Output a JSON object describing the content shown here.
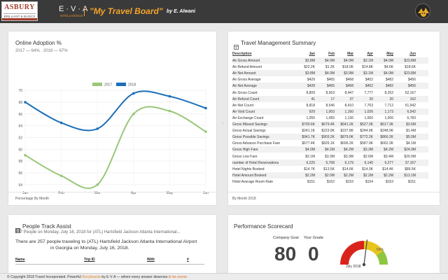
{
  "header": {
    "logo_main": "ASBURY",
    "logo_tag": "BRILLIANT & BASICS",
    "eva_logo": "E·V·A",
    "eva_sub": "INTELLIGENCE",
    "app_title": "\"My Travel Board\"",
    "app_byline": "by E. Alwani",
    "avatar_icon": "user-avatar-icon"
  },
  "adoption_card": {
    "title": "Online Adoption %",
    "subtitle": "2017 — 64% · 2018 — 67%",
    "footer": "Percentage By Month",
    "chart_data": {
      "type": "line",
      "categories": [
        "Jan",
        "Feb",
        "Mar",
        "Apr",
        "May",
        "Jun"
      ],
      "series": [
        {
          "name": "2017",
          "color": "#99c77a",
          "values": [
            59.0,
            55.5,
            54.0,
            66.0,
            66.5,
            63.0
          ]
        },
        {
          "name": "2018",
          "color": "#1c6fb8",
          "values": [
            68.0,
            64.5,
            63.5,
            69.5,
            69.0,
            67.0
          ]
        }
      ],
      "yticks": [
        54,
        56,
        58,
        60,
        62,
        64,
        66,
        68,
        70
      ],
      "ylim": [
        53.5,
        70.5
      ],
      "grid": true,
      "legend": "top"
    }
  },
  "travel_card": {
    "title": "Travel Management Summary",
    "title_icon": "table-icon",
    "footer": "By Month 2018",
    "columns": [
      "Description",
      "Jan",
      "Feb",
      "Mar",
      "Apr",
      "May",
      "Jun"
    ],
    "rows": [
      [
        "Air Gross Amount",
        "$3.8M",
        "$4.0M",
        "$4.0M",
        "$3.1M",
        "$4.0M",
        "$23.8M"
      ],
      [
        "Air Refund Amount",
        "$22.2K",
        "$1.2K",
        "$18.0K",
        "$14.8K",
        "$4.6K",
        "$18.6K"
      ],
      [
        "Air Net Amount",
        "$3.8M",
        "$4.0M",
        "$3.9M",
        "$3.1M",
        "$4.0M",
        "$23.8M"
      ],
      [
        "Air Gross Average",
        "$429",
        "$465",
        "$468",
        "$452",
        "$482",
        "$456"
      ],
      [
        "Air Net Average",
        "$428",
        "$465",
        "$468",
        "$452",
        "$482",
        "$456"
      ],
      [
        "Air Gross Count",
        "8,809",
        "8,563",
        "8,447",
        "7,777",
        "8,252",
        "52,167"
      ],
      [
        "Air Refund Count",
        "41",
        "17",
        "37",
        "20",
        "20",
        "162"
      ],
      [
        "Air Net Count",
        "8,818",
        "8,546",
        "8,410",
        "7,763",
        "7,712",
        "51,942"
      ],
      [
        "Air Void Count",
        "929",
        "1,003",
        "1,160",
        "1,026",
        "1,173",
        "6,542"
      ],
      [
        "Air Exchange Count",
        "1,055",
        "1,083",
        "1,136",
        "1,060",
        "1,006",
        "6,783"
      ],
      [
        "Gross Missed Savings",
        "$700.6K",
        "$679.4K",
        "$641.2K",
        "$527.3K",
        "$617.3K",
        "$3.6M"
      ],
      [
        "Gross Actual Savings",
        "$241.1K",
        "$223.9K",
        "$237.8K",
        "$244.9K",
        "$248.9K",
        "$1.4M"
      ],
      [
        "Gross Possible Savings",
        "$941.7K",
        "$903.2K",
        "$879.0K",
        "$772.2K",
        "$866.2K",
        "$5.0M"
      ],
      [
        "Gross Advance Purchase Fare",
        "$677.4K",
        "$826.1K",
        "$696.2K",
        "$587.9K",
        "$662.3K",
        "$4.1M"
      ],
      [
        "Gross High Fare",
        "$4.0M",
        "$4.2M",
        "$4.2M",
        "$3.3M",
        "$4.2M",
        "$24.9M"
      ],
      [
        "Gross Low Fare",
        "$3.1M",
        "$3.3M",
        "$3.3M",
        "$2.6M",
        "$3.4M",
        "$20.0M"
      ],
      [
        "number of Hotel Reservations",
        "6,225",
        "5,768",
        "6,179",
        "6,140",
        "6,277",
        "37,167"
      ],
      [
        "Hotel Nights Booked",
        "$14.7K",
        "$13.5K",
        "$14.6K",
        "$14.3K",
        "$14.4K",
        "$86.5K"
      ],
      [
        "Hotel Amount Booked",
        "$2.2M",
        "$2.0M",
        "$2.2M",
        "$2.2M",
        "$2.2M",
        "$13.1M"
      ],
      [
        "Hotel Average Room Rate",
        "$151",
        "$152",
        "$153",
        "$154",
        "$153",
        "$151"
      ]
    ]
  },
  "people_card": {
    "title": "People Track Assist",
    "title_icon": "list-icon",
    "summary_short": "257 People on Monday, July 16, 2018 for (ATL) Hartsfield Jackson Atlanta International...",
    "summary_line1": "There are 257 people traveling to (ATL) Hartsfield Jackson Atlanta International Airport",
    "summary_line2": "in Georgia on Monday, July 16, 2018.",
    "col_name": "Name",
    "col_trip": "Trip ID",
    "col_with": "With",
    "col_count": "#"
  },
  "performance_card": {
    "title": "Performance Scorecard",
    "goal_label": "Company Goal",
    "grade_label": "Your Grade",
    "goal_value": "80",
    "grade_value": "0",
    "gauge_value_label": "54%",
    "gauge_date": "July 2018",
    "gauge_value": 54,
    "gauge_colors": [
      "#d9241c",
      "#e8c51d",
      "#8ec63f"
    ]
  },
  "footer": {
    "prefix": "© Copyright 2018 Travel Incorporated. Powerful ",
    "storyboards": "Storyboards",
    "by_eva": " by E·V·A",
    "tail": " — where every answer deserves ",
    "to_be_seen": "to be scene."
  }
}
